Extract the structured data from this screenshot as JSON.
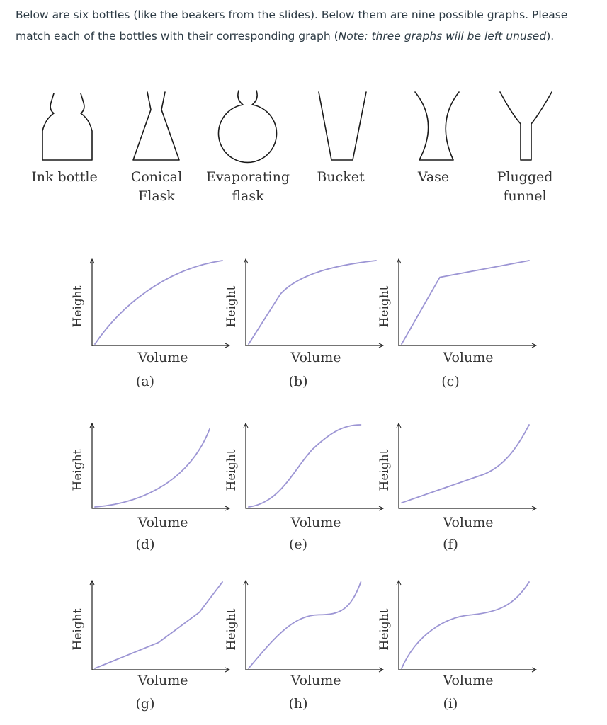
{
  "intro": {
    "part1": "Below are six bottles (like the beakers from the slides). Below them are nine possible graphs. Please match each of the bottles with their corresponding graph (",
    "note": "Note: three graphs will be left unused",
    "part2": ")."
  },
  "bottles": [
    {
      "id": "ink",
      "lines": [
        "Ink bottle"
      ]
    },
    {
      "id": "conical",
      "lines": [
        "Conical",
        "Flask"
      ]
    },
    {
      "id": "evaporating",
      "lines": [
        "Evaporating",
        "flask"
      ]
    },
    {
      "id": "bucket",
      "lines": [
        "Bucket"
      ]
    },
    {
      "id": "vase",
      "lines": [
        "Vase"
      ]
    },
    {
      "id": "plugged",
      "lines": [
        "Plugged",
        "funnel"
      ]
    }
  ],
  "graphs": [
    {
      "letter": "(a)",
      "xlabel": "Volume",
      "ylabel": "Height"
    },
    {
      "letter": "(b)",
      "xlabel": "Volume",
      "ylabel": "Height"
    },
    {
      "letter": "(c)",
      "xlabel": "Volume",
      "ylabel": "Height"
    },
    {
      "letter": "(d)",
      "xlabel": "Volume",
      "ylabel": "Height"
    },
    {
      "letter": "(e)",
      "xlabel": "Volume",
      "ylabel": "Height"
    },
    {
      "letter": "(f)",
      "xlabel": "Volume",
      "ylabel": "Height"
    },
    {
      "letter": "(g)",
      "xlabel": "Volume",
      "ylabel": "Height"
    },
    {
      "letter": "(h)",
      "xlabel": "Volume",
      "ylabel": "Height"
    },
    {
      "letter": "(i)",
      "xlabel": "Volume",
      "ylabel": "Height"
    }
  ],
  "colors": {
    "curve": "#9c95d4",
    "text": "#2d3b45"
  }
}
